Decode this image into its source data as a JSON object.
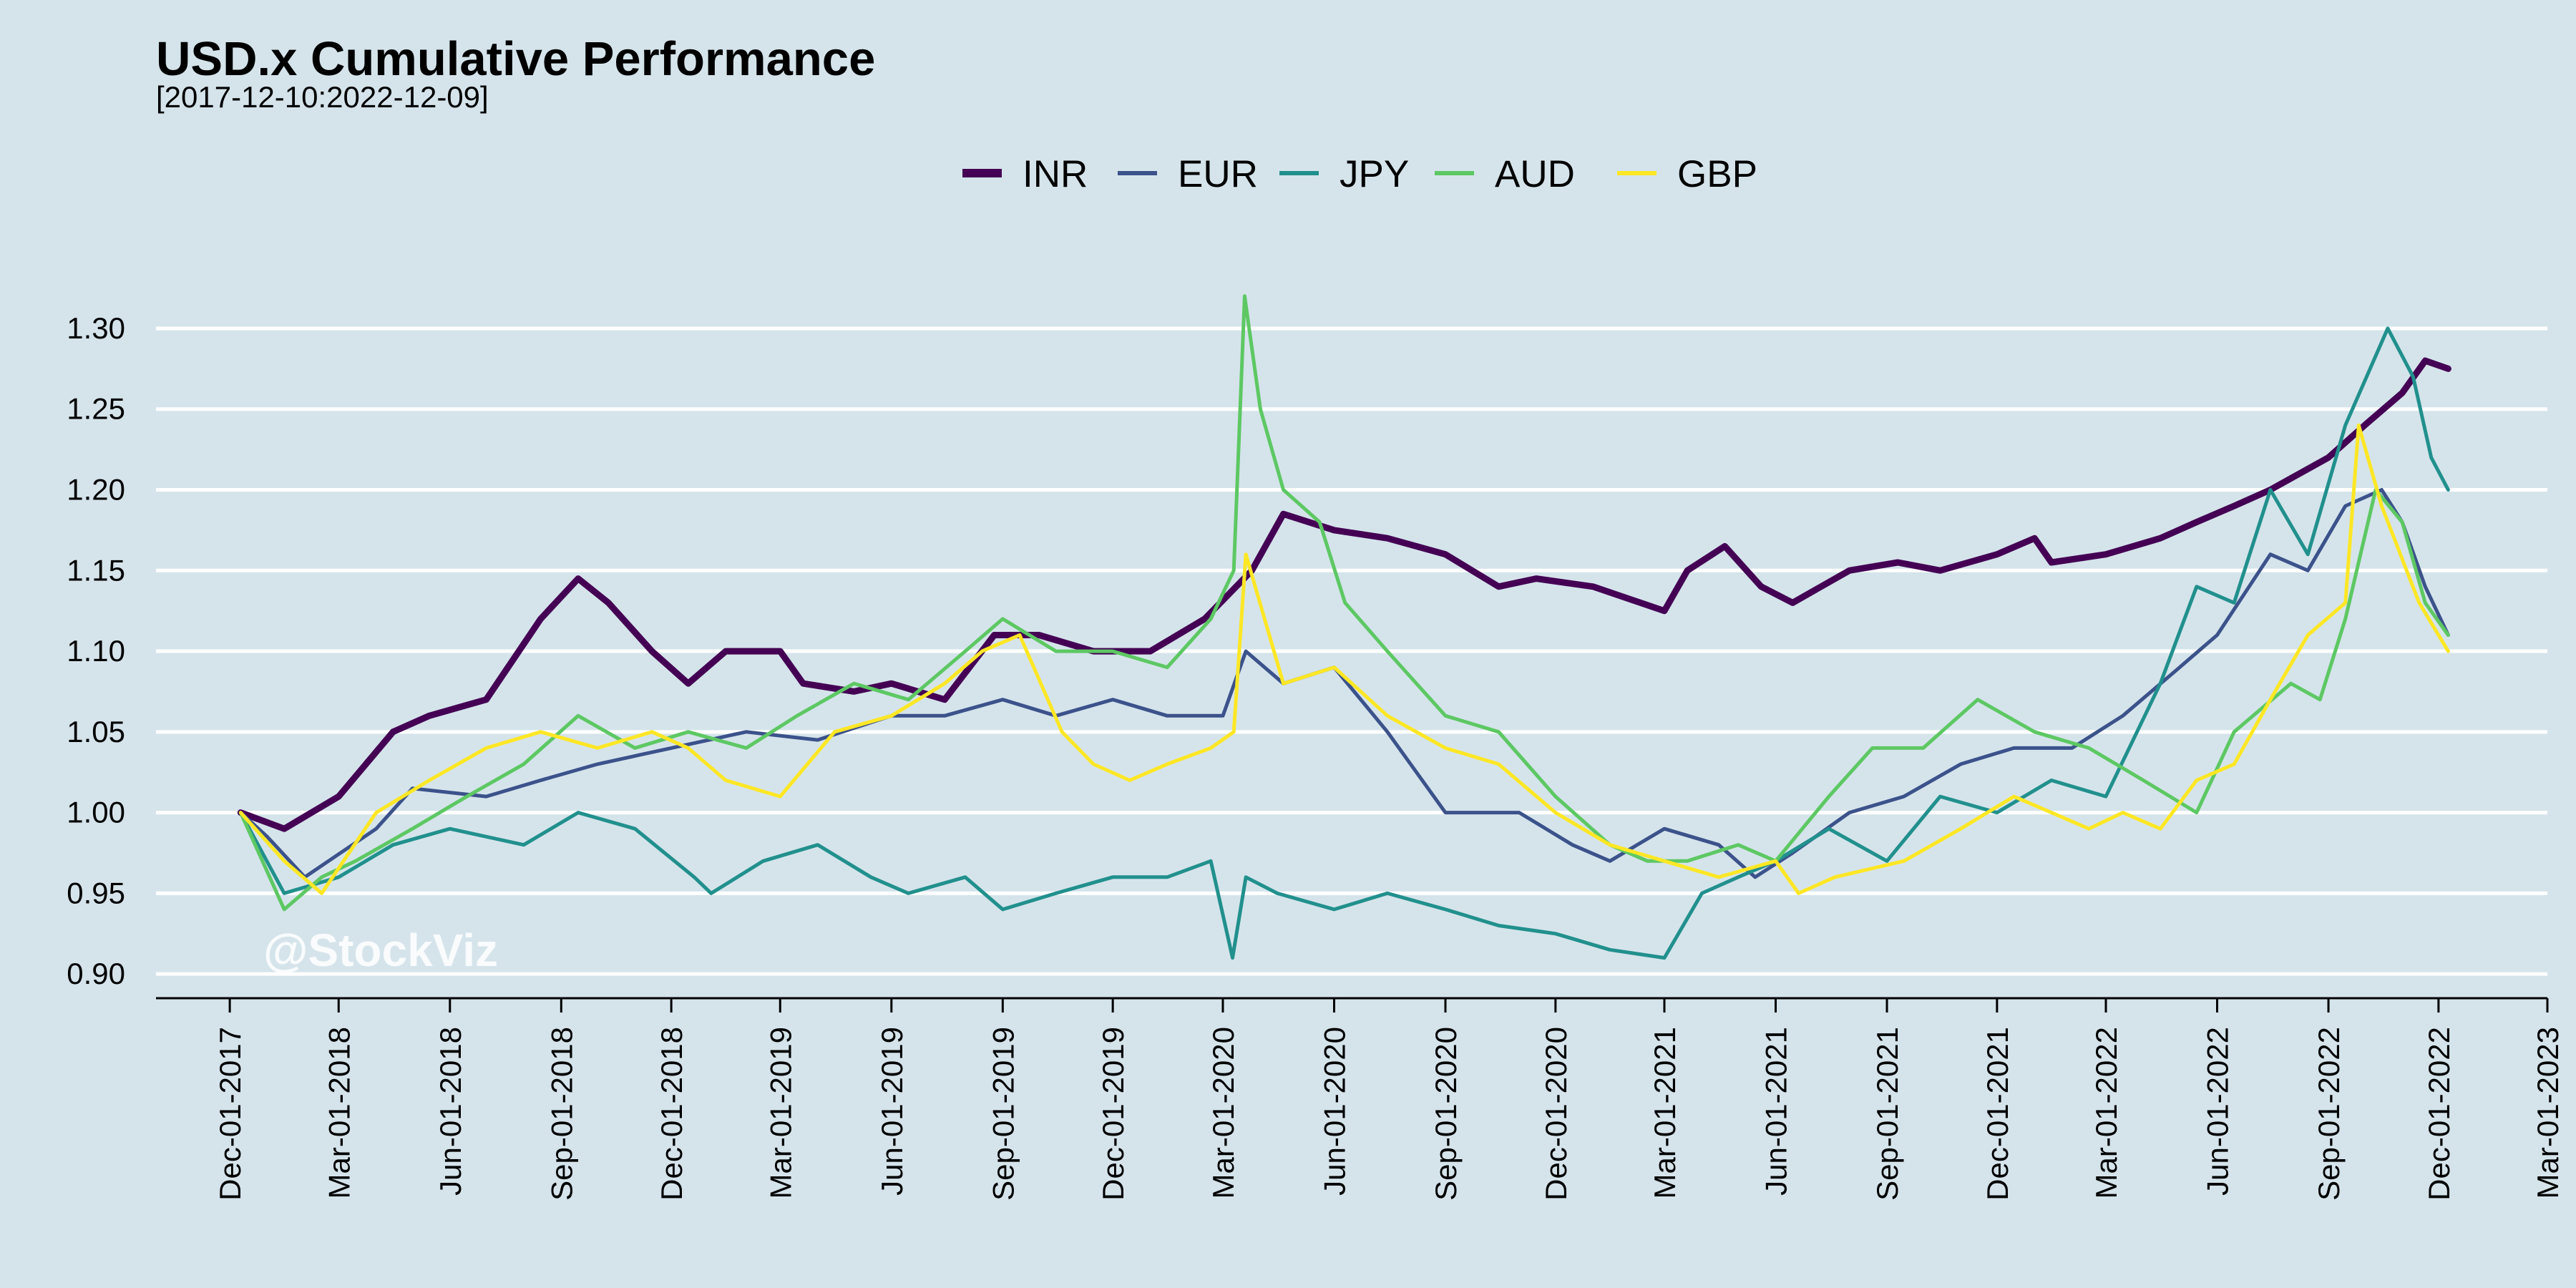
{
  "chart_data": {
    "type": "line",
    "title": "USD.x Cumulative Performance",
    "subtitle": "[2017-12-10:2022-12-09]",
    "watermark": "@StockViz",
    "xlabel": "",
    "ylabel": "",
    "ylim": [
      0.885,
      1.335
    ],
    "y_ticks": [
      0.9,
      0.95,
      1.0,
      1.05,
      1.1,
      1.15,
      1.2,
      1.25,
      1.3
    ],
    "y_tick_labels": [
      "0.90",
      "0.95",
      "1.00",
      "1.05",
      "1.10",
      "1.15",
      "1.20",
      "1.25",
      "1.30"
    ],
    "xlim": [
      "2017-10-01",
      "2023-03-01"
    ],
    "x_ticks": [
      "2017-12-01",
      "2018-03-01",
      "2018-06-01",
      "2018-09-01",
      "2018-12-01",
      "2019-03-01",
      "2019-06-01",
      "2019-09-01",
      "2019-12-01",
      "2020-03-01",
      "2020-06-01",
      "2020-09-01",
      "2020-12-01",
      "2021-03-01",
      "2021-06-01",
      "2021-09-01",
      "2021-12-01",
      "2022-03-01",
      "2022-06-01",
      "2022-09-01",
      "2022-12-01",
      "2023-03-01"
    ],
    "x_tick_labels": [
      "Dec-01-2017",
      "Mar-01-2018",
      "Jun-01-2018",
      "Sep-01-2018",
      "Dec-01-2018",
      "Mar-01-2019",
      "Jun-01-2019",
      "Sep-01-2019",
      "Dec-01-2019",
      "Mar-01-2020",
      "Jun-01-2020",
      "Sep-01-2020",
      "Dec-01-2020",
      "Mar-01-2021",
      "Jun-01-2021",
      "Sep-01-2021",
      "Dec-01-2021",
      "Mar-01-2022",
      "Jun-01-2022",
      "Sep-01-2022",
      "Dec-01-2022",
      "Mar-01-2023"
    ],
    "grid": "horizontal",
    "legend_position": "top",
    "colors": {
      "background": "#d5e4eb",
      "grid": "#ffffff",
      "axis": "#000000"
    },
    "series": [
      {
        "name": "INR",
        "color": "#440154",
        "x": [
          "2017-12-10",
          "2018-01-15",
          "2018-03-01",
          "2018-04-15",
          "2018-05-15",
          "2018-07-01",
          "2018-08-15",
          "2018-09-15",
          "2018-10-10",
          "2018-11-15",
          "2018-12-15",
          "2019-01-15",
          "2019-03-01",
          "2019-03-20",
          "2019-05-01",
          "2019-06-01",
          "2019-07-15",
          "2019-08-25",
          "2019-10-01",
          "2019-11-15",
          "2020-01-01",
          "2020-02-15",
          "2020-03-25",
          "2020-04-20",
          "2020-06-01",
          "2020-07-15",
          "2020-09-01",
          "2020-10-15",
          "2020-11-15",
          "2021-01-01",
          "2021-03-01",
          "2021-03-20",
          "2021-04-20",
          "2021-05-20",
          "2021-06-15",
          "2021-08-01",
          "2021-09-10",
          "2021-10-15",
          "2021-12-01",
          "2022-01-01",
          "2022-01-15",
          "2022-03-01",
          "2022-04-15",
          "2022-05-15",
          "2022-06-15",
          "2022-07-15",
          "2022-09-01",
          "2022-10-01",
          "2022-11-01",
          "2022-11-20",
          "2022-12-09"
        ],
        "values": [
          1.0,
          0.99,
          1.01,
          1.05,
          1.06,
          1.07,
          1.12,
          1.145,
          1.13,
          1.1,
          1.08,
          1.1,
          1.1,
          1.08,
          1.075,
          1.08,
          1.07,
          1.11,
          1.11,
          1.1,
          1.1,
          1.12,
          1.15,
          1.185,
          1.175,
          1.17,
          1.16,
          1.14,
          1.145,
          1.14,
          1.125,
          1.15,
          1.165,
          1.14,
          1.13,
          1.15,
          1.155,
          1.15,
          1.16,
          1.17,
          1.155,
          1.16,
          1.17,
          1.18,
          1.19,
          1.2,
          1.22,
          1.24,
          1.26,
          1.28,
          1.275
        ]
      },
      {
        "name": "EUR",
        "color": "#3b528b",
        "x": [
          "2017-12-10",
          "2018-01-01",
          "2018-02-01",
          "2018-04-01",
          "2018-05-01",
          "2018-07-01",
          "2018-08-15",
          "2018-10-01",
          "2018-12-01",
          "2019-02-01",
          "2019-04-01",
          "2019-06-01",
          "2019-07-15",
          "2019-09-01",
          "2019-10-15",
          "2019-12-01",
          "2020-01-15",
          "2020-03-01",
          "2020-03-20",
          "2020-04-20",
          "2020-06-01",
          "2020-07-15",
          "2020-09-01",
          "2020-11-01",
          "2020-12-15",
          "2021-01-15",
          "2021-03-01",
          "2021-04-15",
          "2021-05-15",
          "2021-06-15",
          "2021-08-01",
          "2021-09-15",
          "2021-11-01",
          "2021-12-15",
          "2022-02-01",
          "2022-03-15",
          "2022-05-01",
          "2022-06-01",
          "2022-07-15",
          "2022-08-15",
          "2022-09-15",
          "2022-10-15",
          "2022-11-01",
          "2022-11-20",
          "2022-12-09"
        ],
        "values": [
          1.0,
          0.985,
          0.96,
          0.99,
          1.015,
          1.01,
          1.02,
          1.03,
          1.04,
          1.05,
          1.045,
          1.06,
          1.06,
          1.07,
          1.06,
          1.07,
          1.06,
          1.06,
          1.1,
          1.08,
          1.09,
          1.05,
          1.0,
          1.0,
          0.98,
          0.97,
          0.99,
          0.98,
          0.96,
          0.975,
          1.0,
          1.01,
          1.03,
          1.04,
          1.04,
          1.06,
          1.09,
          1.11,
          1.16,
          1.15,
          1.19,
          1.2,
          1.18,
          1.14,
          1.11
        ]
      },
      {
        "name": "JPY",
        "color": "#21908d",
        "x": [
          "2017-12-10",
          "2018-01-15",
          "2018-03-01",
          "2018-04-15",
          "2018-06-01",
          "2018-08-01",
          "2018-09-15",
          "2018-11-01",
          "2018-12-20",
          "2019-01-03",
          "2019-02-15",
          "2019-04-01",
          "2019-05-15",
          "2019-06-15",
          "2019-08-01",
          "2019-09-01",
          "2019-10-15",
          "2019-12-01",
          "2020-01-15",
          "2020-02-20",
          "2020-03-09",
          "2020-03-20",
          "2020-04-15",
          "2020-06-01",
          "2020-07-15",
          "2020-09-01",
          "2020-10-15",
          "2020-12-01",
          "2021-01-15",
          "2021-03-01",
          "2021-04-01",
          "2021-05-01",
          "2021-06-01",
          "2021-07-15",
          "2021-09-01",
          "2021-10-15",
          "2021-12-01",
          "2022-01-15",
          "2022-03-01",
          "2022-04-15",
          "2022-05-15",
          "2022-06-15",
          "2022-07-15",
          "2022-08-15",
          "2022-09-15",
          "2022-10-20",
          "2022-11-10",
          "2022-11-25",
          "2022-12-09"
        ],
        "values": [
          1.0,
          0.95,
          0.96,
          0.98,
          0.99,
          0.98,
          1.0,
          0.99,
          0.96,
          0.95,
          0.97,
          0.98,
          0.96,
          0.95,
          0.96,
          0.94,
          0.95,
          0.96,
          0.96,
          0.97,
          0.91,
          0.96,
          0.95,
          0.94,
          0.95,
          0.94,
          0.93,
          0.925,
          0.915,
          0.91,
          0.95,
          0.96,
          0.97,
          0.99,
          0.97,
          1.01,
          1.0,
          1.02,
          1.01,
          1.08,
          1.14,
          1.13,
          1.2,
          1.16,
          1.24,
          1.3,
          1.27,
          1.22,
          1.2
        ]
      },
      {
        "name": "AUD",
        "color": "#5dc863",
        "x": [
          "2017-12-10",
          "2018-01-15",
          "2018-02-15",
          "2018-03-15",
          "2018-05-01",
          "2018-06-15",
          "2018-08-01",
          "2018-09-15",
          "2018-11-01",
          "2018-12-15",
          "2019-02-01",
          "2019-03-15",
          "2019-05-01",
          "2019-06-15",
          "2019-08-01",
          "2019-09-01",
          "2019-10-15",
          "2019-12-01",
          "2020-01-15",
          "2020-02-20",
          "2020-03-10",
          "2020-03-19",
          "2020-04-01",
          "2020-04-20",
          "2020-05-20",
          "2020-06-10",
          "2020-07-15",
          "2020-09-01",
          "2020-10-15",
          "2020-12-01",
          "2021-01-15",
          "2021-02-15",
          "2021-03-20",
          "2021-05-01",
          "2021-06-01",
          "2021-07-15",
          "2021-08-20",
          "2021-10-01",
          "2021-11-15",
          "2022-01-01",
          "2022-02-15",
          "2022-04-01",
          "2022-05-15",
          "2022-06-15",
          "2022-08-01",
          "2022-08-25",
          "2022-09-15",
          "2022-10-10",
          "2022-11-01",
          "2022-11-20",
          "2022-12-09"
        ],
        "values": [
          1.0,
          0.94,
          0.96,
          0.97,
          0.99,
          1.01,
          1.03,
          1.06,
          1.04,
          1.05,
          1.04,
          1.06,
          1.08,
          1.07,
          1.1,
          1.12,
          1.1,
          1.1,
          1.09,
          1.12,
          1.15,
          1.32,
          1.25,
          1.2,
          1.18,
          1.13,
          1.1,
          1.06,
          1.05,
          1.01,
          0.98,
          0.97,
          0.97,
          0.98,
          0.97,
          1.01,
          1.04,
          1.04,
          1.07,
          1.05,
          1.04,
          1.02,
          1.0,
          1.05,
          1.08,
          1.07,
          1.12,
          1.2,
          1.18,
          1.13,
          1.11
        ]
      },
      {
        "name": "GBP",
        "color": "#fde725",
        "x": [
          "2017-12-10",
          "2018-01-15",
          "2018-02-15",
          "2018-04-01",
          "2018-05-15",
          "2018-07-01",
          "2018-08-15",
          "2018-10-01",
          "2018-11-15",
          "2018-12-15",
          "2019-01-15",
          "2019-03-01",
          "2019-04-15",
          "2019-06-01",
          "2019-07-15",
          "2019-08-15",
          "2019-09-15",
          "2019-10-20",
          "2019-11-15",
          "2019-12-15",
          "2020-01-15",
          "2020-02-20",
          "2020-03-10",
          "2020-03-20",
          "2020-04-20",
          "2020-06-01",
          "2020-07-15",
          "2020-09-01",
          "2020-10-15",
          "2020-12-01",
          "2021-01-15",
          "2021-03-01",
          "2021-04-15",
          "2021-06-01",
          "2021-06-20",
          "2021-07-20",
          "2021-09-15",
          "2021-11-01",
          "2021-12-15",
          "2022-01-15",
          "2022-02-15",
          "2022-03-15",
          "2022-04-15",
          "2022-05-15",
          "2022-06-15",
          "2022-07-15",
          "2022-08-15",
          "2022-09-15",
          "2022-09-26",
          "2022-10-15",
          "2022-11-15",
          "2022-12-09"
        ],
        "values": [
          1.0,
          0.97,
          0.95,
          1.0,
          1.02,
          1.04,
          1.05,
          1.04,
          1.05,
          1.04,
          1.02,
          1.01,
          1.05,
          1.06,
          1.08,
          1.1,
          1.11,
          1.05,
          1.03,
          1.02,
          1.03,
          1.04,
          1.05,
          1.16,
          1.08,
          1.09,
          1.06,
          1.04,
          1.03,
          1.0,
          0.98,
          0.97,
          0.96,
          0.97,
          0.95,
          0.96,
          0.97,
          0.99,
          1.01,
          1.0,
          0.99,
          1.0,
          0.99,
          1.02,
          1.03,
          1.07,
          1.11,
          1.13,
          1.24,
          1.19,
          1.13,
          1.1
        ]
      }
    ]
  }
}
